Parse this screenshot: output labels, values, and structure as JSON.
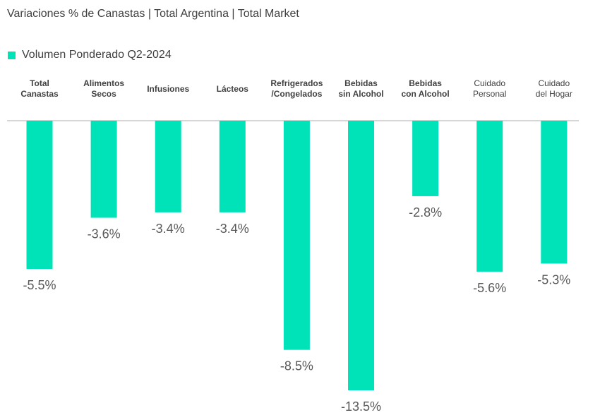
{
  "chart_data": {
    "type": "bar",
    "title": "Variaciones % de Canastas | Total Argentina | Total Market",
    "categories": [
      [
        "Total",
        "Canastas"
      ],
      [
        "Alimentos",
        "Secos"
      ],
      [
        "Infusiones"
      ],
      [
        "Lácteos"
      ],
      [
        "Refrigerados",
        "/Congelados"
      ],
      [
        "Bebidas",
        "sin Alcohol"
      ],
      [
        "Bebidas",
        "con Alcohol"
      ],
      [
        "Cuidado",
        "Personal"
      ],
      [
        "Cuidado",
        "del Hogar"
      ]
    ],
    "series": [
      {
        "name": "Volumen Ponderado Q2-2024",
        "values": [
          -5.5,
          -3.6,
          -3.4,
          -3.4,
          -8.5,
          -13.5,
          -2.8,
          -5.6,
          -5.3
        ],
        "color": "#00E3B9"
      }
    ],
    "data_labels": [
      "-5.5%",
      "-3.6%",
      "-3.4%",
      "-3.4%",
      "-8.5%",
      "-13.5%",
      "-2.8%",
      "-5.6%",
      "-5.3%"
    ],
    "legend_position": "top-left",
    "grid": false,
    "axis_labels_position": "top"
  }
}
